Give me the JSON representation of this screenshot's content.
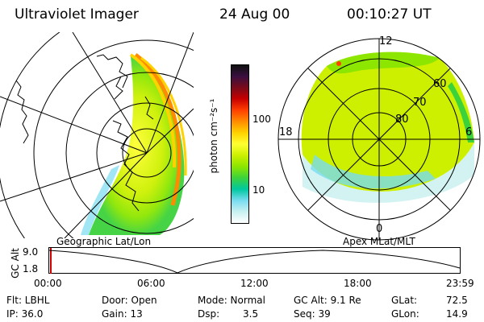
{
  "header": {
    "title": "Ultraviolet Imager",
    "date": "24 Aug 00",
    "time": "00:10:27 UT"
  },
  "colorbar": {
    "label": "photon cm⁻²s⁻¹",
    "ticks": [
      "100",
      "10"
    ],
    "colors": [
      "#101010",
      "#3a0f40",
      "#7a0a1a",
      "#c80000",
      "#ff4000",
      "#ff8c00",
      "#ffd200",
      "#ffff32",
      "#ccf000",
      "#8ce600",
      "#3cd23c",
      "#00c8a0",
      "#78dcf0",
      "#c8f0f0",
      "#ffffff"
    ]
  },
  "left_panel": {
    "label": "Geographic Lat/Lon"
  },
  "right_panel": {
    "label": "Apex MLat/MLT",
    "mlt_labels": {
      "top": "12",
      "left": "18",
      "right": "6",
      "bottom": "0"
    },
    "lat_labels": [
      "60",
      "70",
      "80"
    ]
  },
  "alt_plot": {
    "ylabel": "GC Alt",
    "yticks": [
      "9.0",
      "1.8"
    ],
    "xticks": [
      "00:00",
      "06:00",
      "12:00",
      "18:00",
      "23:59"
    ]
  },
  "info": {
    "flt": "Flt: LBHL",
    "ip": "IP: 36.0",
    "door": "Door: Open",
    "gain": "Gain: 13",
    "mode": "Mode: Normal",
    "dsp": "Dsp:",
    "dsp_value": "3.5",
    "gc_alt": "GC Alt: 9.1 Re",
    "seq": "Seq: 39",
    "glat": "GLat:",
    "glat_value": "72.5",
    "glon": "GLon:",
    "glon_value": "14.9"
  }
}
